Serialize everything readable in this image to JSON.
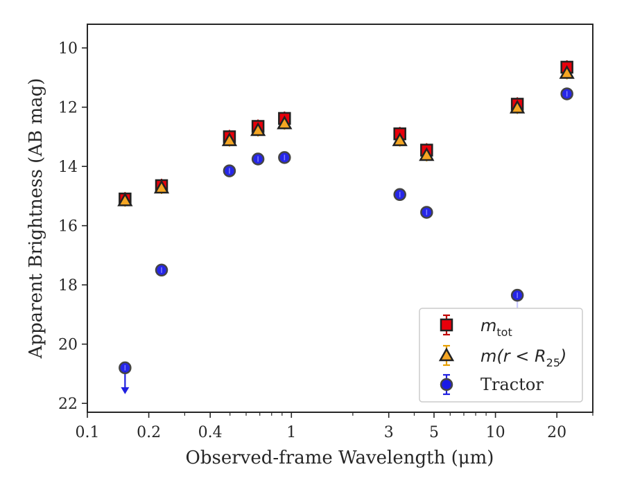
{
  "chart_data": {
    "type": "scatter",
    "xlabel": "Observed-frame Wavelength (μm)",
    "ylabel": "Apparent Brightness (AB mag)",
    "xscale": "log",
    "xlim": [
      0.1,
      30
    ],
    "ylim": [
      22.3,
      9.2
    ],
    "y_inverted": true,
    "x_ticks": [
      {
        "value": 0.1,
        "label": "0.1"
      },
      {
        "value": 0.2,
        "label": "0.2"
      },
      {
        "value": 0.4,
        "label": "0.4"
      },
      {
        "value": 1,
        "label": "1"
      },
      {
        "value": 3,
        "label": "3"
      },
      {
        "value": 5,
        "label": "5"
      },
      {
        "value": 10,
        "label": "10"
      },
      {
        "value": 20,
        "label": "20"
      }
    ],
    "y_ticks": [
      10,
      12,
      14,
      16,
      18,
      20,
      22
    ],
    "legend_position": "lower-right",
    "grid": false,
    "series": [
      {
        "name": "m_tot",
        "marker": "square",
        "color": "#e8000b",
        "edge_color": "#222222",
        "error_color": "#c00000",
        "points": [
          {
            "x": 0.153,
            "y": 15.1
          },
          {
            "x": 0.231,
            "y": 14.65
          },
          {
            "x": 0.497,
            "y": 13.0
          },
          {
            "x": 0.686,
            "y": 12.65
          },
          {
            "x": 0.925,
            "y": 12.38
          },
          {
            "x": 3.4,
            "y": 12.9
          },
          {
            "x": 4.6,
            "y": 13.45
          },
          {
            "x": 12.8,
            "y": 11.9
          },
          {
            "x": 22.4,
            "y": 10.65
          }
        ]
      },
      {
        "name": "m(r<R25)",
        "marker": "triangle",
        "color": "#f5a623",
        "edge_color": "#222222",
        "error_color": "#e8a000",
        "points": [
          {
            "x": 0.153,
            "y": 15.15
          },
          {
            "x": 0.231,
            "y": 14.72
          },
          {
            "x": 0.497,
            "y": 13.12
          },
          {
            "x": 0.686,
            "y": 12.78
          },
          {
            "x": 0.925,
            "y": 12.55
          },
          {
            "x": 3.4,
            "y": 13.12
          },
          {
            "x": 4.6,
            "y": 13.62
          },
          {
            "x": 12.8,
            "y": 12.02
          },
          {
            "x": 22.4,
            "y": 10.85
          }
        ]
      },
      {
        "name": "Tractor",
        "marker": "circle",
        "color": "#1a1ae6",
        "edge_color": "#444444",
        "error_color": "#2020e0",
        "points": [
          {
            "x": 0.153,
            "y": 20.8,
            "upper_limit": true
          },
          {
            "x": 0.231,
            "y": 17.5
          },
          {
            "x": 0.497,
            "y": 14.15
          },
          {
            "x": 0.686,
            "y": 13.75
          },
          {
            "x": 0.925,
            "y": 13.7
          },
          {
            "x": 3.4,
            "y": 14.95
          },
          {
            "x": 4.6,
            "y": 15.55
          },
          {
            "x": 12.8,
            "y": 18.35,
            "upper_limit": true
          },
          {
            "x": 22.4,
            "y": 11.55
          }
        ]
      }
    ]
  },
  "legend": {
    "m_tot_base": "m",
    "m_tot_sub": "tot",
    "m_r_prefix": "m(r < R",
    "m_r_sub": "25",
    "m_r_suffix": ")",
    "tractor": "Tractor"
  }
}
